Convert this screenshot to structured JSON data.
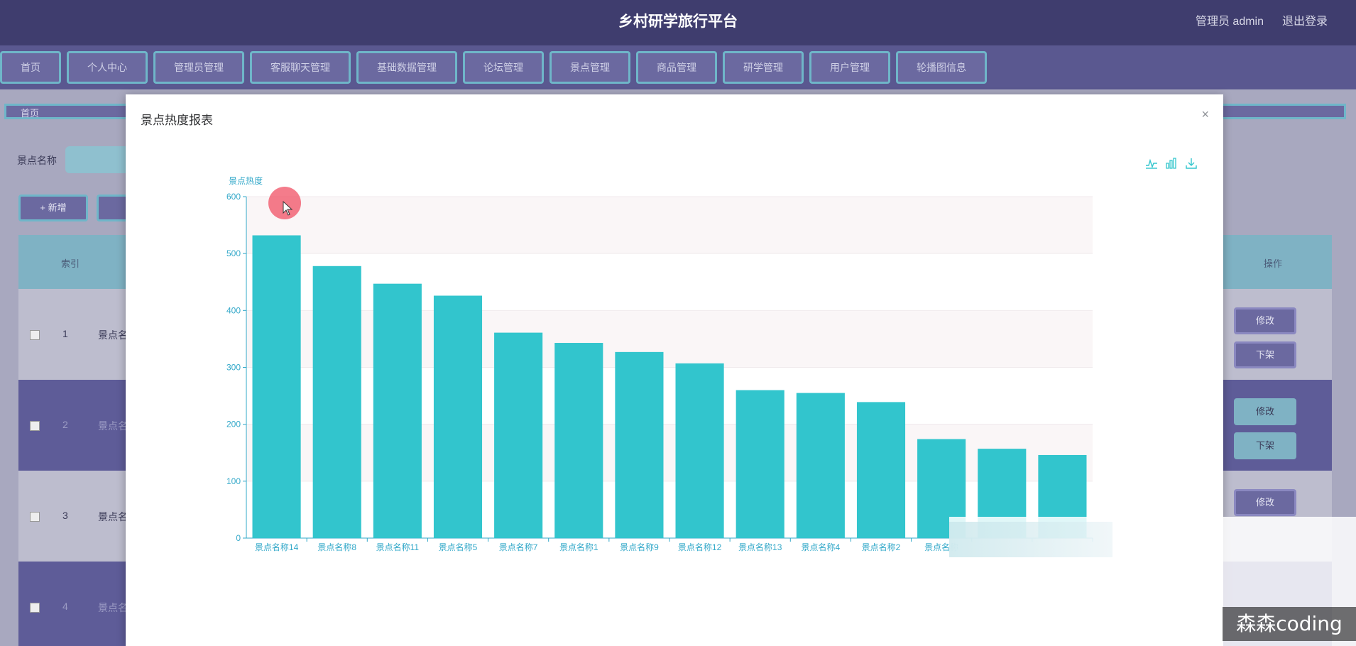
{
  "header": {
    "title": "乡村研学旅行平台",
    "user": "管理员 admin",
    "logout": "退出登录"
  },
  "nav": {
    "items": [
      "首页",
      "个人中心",
      "管理员管理",
      "客服聊天管理",
      "基础数据管理",
      "论坛管理",
      "景点管理",
      "商品管理",
      "研学管理",
      "用户管理",
      "轮播图信息"
    ]
  },
  "breadcrumb": {
    "home": "首页"
  },
  "search": {
    "label": "景点名称"
  },
  "toolbar": {
    "add_label": "+ 新增"
  },
  "table": {
    "header_index": "索引",
    "header_op": "操作",
    "rows": [
      {
        "index": "1",
        "name": "景点名"
      },
      {
        "index": "2",
        "name": "景点名"
      },
      {
        "index": "3",
        "name": "景点名"
      },
      {
        "index": "4",
        "name": "景点名"
      }
    ],
    "edit_label": "修改",
    "offline_label": "下架"
  },
  "modal": {
    "title": "景点热度报表",
    "close": "×"
  },
  "watermark": "森森coding",
  "colors": {
    "bar": "#32c5cd",
    "axis": "#32a8c9",
    "header": "#3f3d6e"
  },
  "icons": [
    "line-chart-icon",
    "bar-chart-icon",
    "download-icon",
    "close-icon"
  ],
  "chart_data": {
    "type": "bar",
    "ylabel": "景点热度",
    "xlabel": "",
    "ylim": [
      0,
      600
    ],
    "yticks": [
      0,
      100,
      200,
      300,
      400,
      500,
      600
    ],
    "categories": [
      "景点名称14",
      "景点名称8",
      "景点名称11",
      "景点名称5",
      "景点名称7",
      "景点名称1",
      "景点名称9",
      "景点名称12",
      "景点名称13",
      "景点名称4",
      "景点名称2",
      "景点名称",
      "",
      ""
    ],
    "values": [
      532,
      478,
      447,
      426,
      361,
      343,
      327,
      307,
      260,
      255,
      239,
      174,
      157,
      146
    ],
    "grid": true
  }
}
